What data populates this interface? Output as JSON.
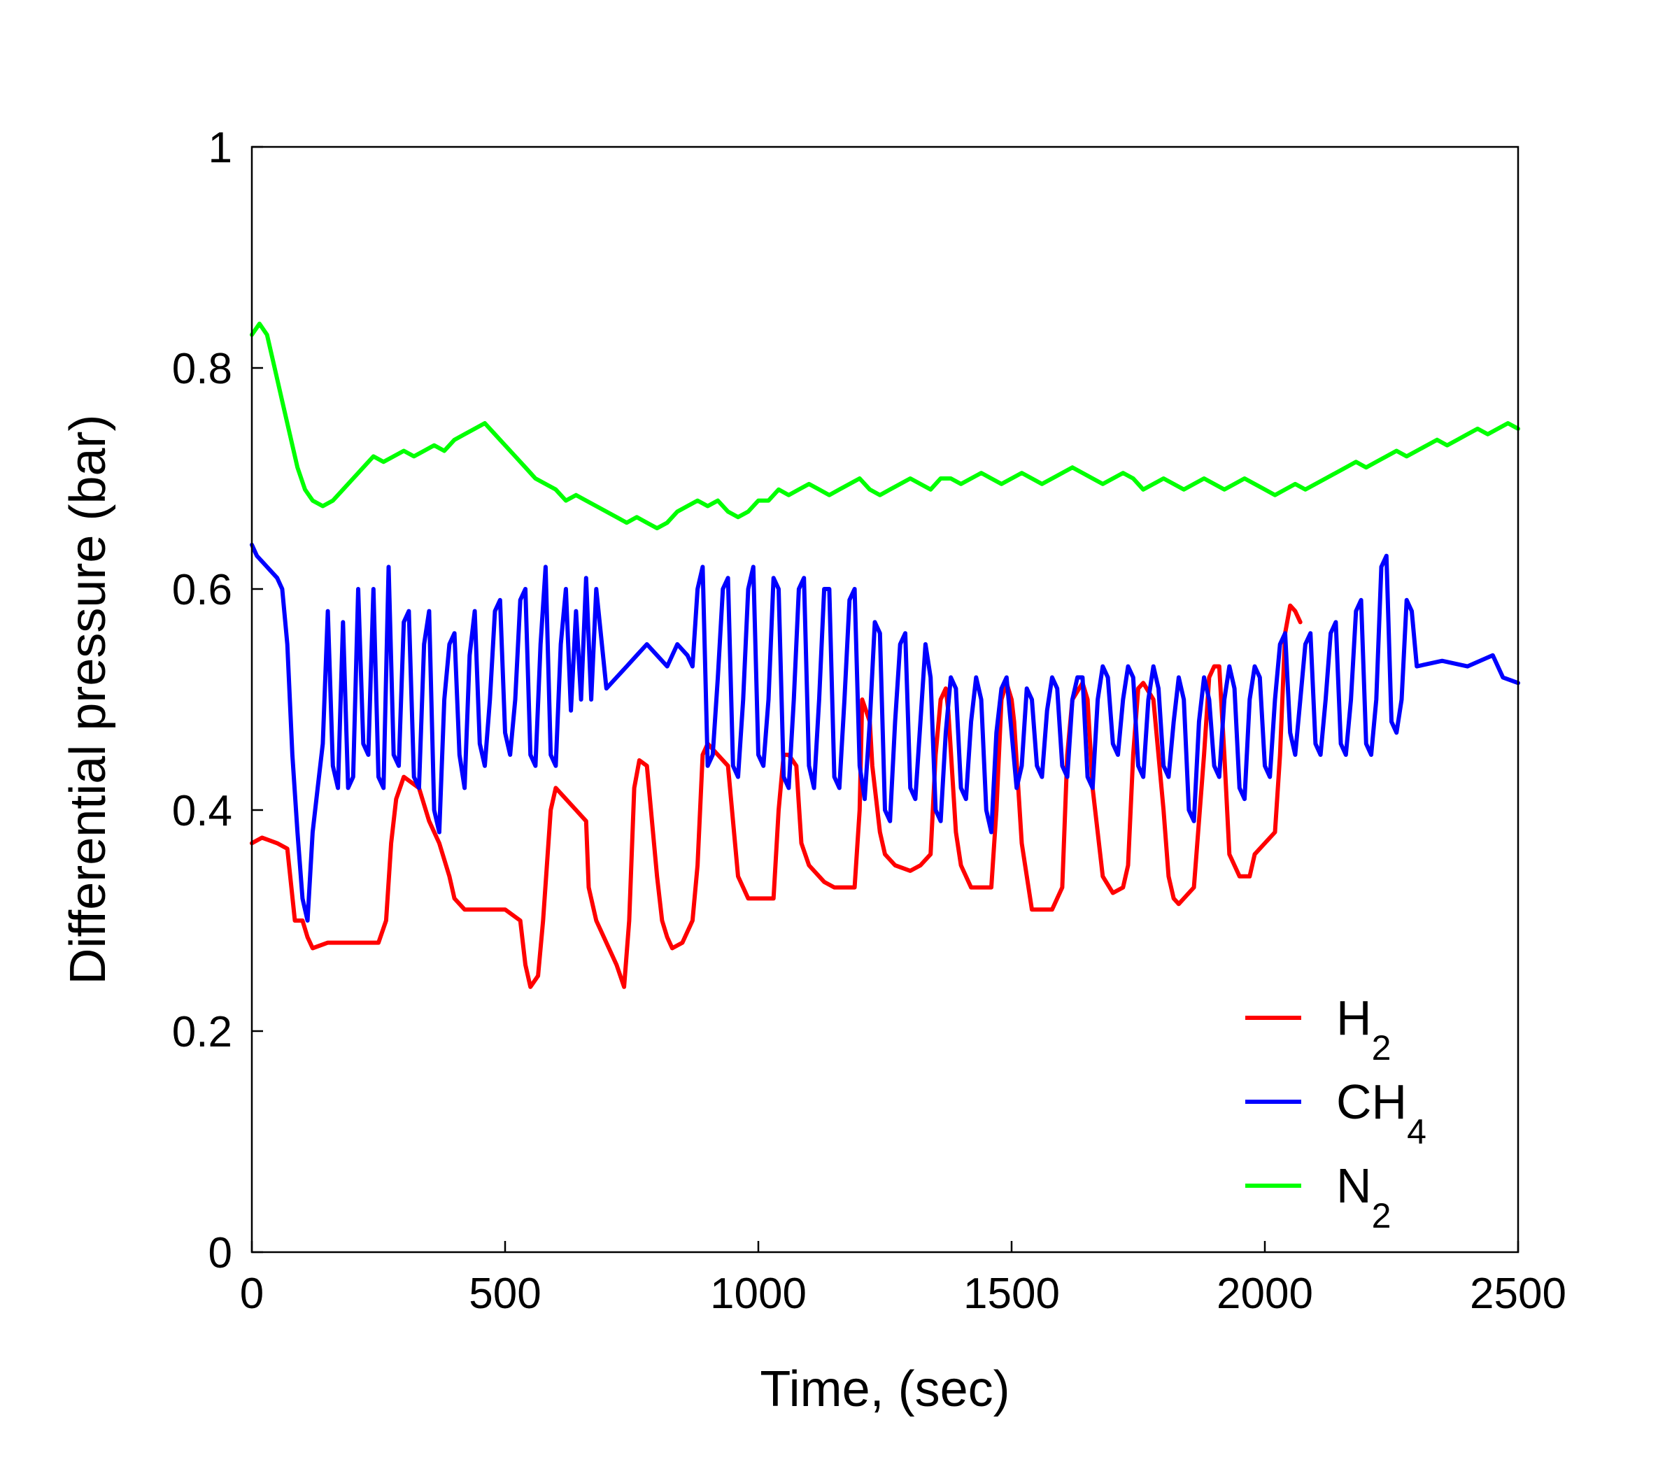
{
  "chart_data": {
    "type": "line",
    "title": "",
    "xlabel": "Time, (sec)",
    "ylabel": "Differential pressure (bar)",
    "xlim": [
      0,
      2500
    ],
    "ylim": [
      0,
      1
    ],
    "xticks": [
      0,
      500,
      1000,
      1500,
      2000,
      2500
    ],
    "xtick_labels": [
      "0",
      "500",
      "1000",
      "1500",
      "2000",
      "2500"
    ],
    "yticks": [
      0,
      0.2,
      0.4,
      0.6,
      0.8,
      1
    ],
    "ytick_labels": [
      "0",
      "0.2",
      "0.4",
      "0.6",
      "0.8",
      "1"
    ],
    "grid": false,
    "legend_position": "bottom-right",
    "series": [
      {
        "name": "H2",
        "label_main": "H",
        "label_sub": "2",
        "color": "#ff0000",
        "x": [
          0,
          20,
          50,
          70,
          85,
          100,
          110,
          120,
          150,
          200,
          250,
          265,
          275,
          285,
          300,
          330,
          350,
          370,
          390,
          400,
          420,
          450,
          500,
          530,
          540,
          550,
          565,
          575,
          590,
          600,
          620,
          640,
          660,
          665,
          680,
          700,
          720,
          735,
          745,
          755,
          765,
          780,
          800,
          810,
          820,
          830,
          850,
          870,
          880,
          890,
          900,
          920,
          940,
          960,
          970,
          980,
          1000,
          1030,
          1040,
          1050,
          1060,
          1075,
          1085,
          1100,
          1130,
          1150,
          1190,
          1200,
          1205,
          1220,
          1225,
          1240,
          1250,
          1270,
          1300,
          1320,
          1340,
          1350,
          1360,
          1370,
          1375,
          1390,
          1400,
          1420,
          1450,
          1460,
          1470,
          1480,
          1490,
          1500,
          1505,
          1520,
          1540,
          1580,
          1600,
          1610,
          1620,
          1640,
          1650,
          1660,
          1680,
          1700,
          1720,
          1730,
          1740,
          1750,
          1760,
          1780,
          1800,
          1810,
          1820,
          1830,
          1840,
          1860,
          1880,
          1890,
          1900,
          1910,
          1920,
          1930,
          1950,
          1960,
          1970,
          1980,
          2000,
          2020,
          2030,
          2040,
          2050,
          2060,
          2070
        ],
        "y": [
          0.37,
          0.375,
          0.37,
          0.365,
          0.3,
          0.3,
          0.285,
          0.275,
          0.28,
          0.28,
          0.28,
          0.3,
          0.37,
          0.41,
          0.43,
          0.42,
          0.39,
          0.37,
          0.34,
          0.32,
          0.31,
          0.31,
          0.31,
          0.3,
          0.26,
          0.24,
          0.25,
          0.3,
          0.4,
          0.42,
          0.41,
          0.4,
          0.39,
          0.33,
          0.3,
          0.28,
          0.26,
          0.24,
          0.3,
          0.42,
          0.445,
          0.44,
          0.34,
          0.3,
          0.285,
          0.275,
          0.28,
          0.3,
          0.35,
          0.45,
          0.46,
          0.45,
          0.44,
          0.34,
          0.33,
          0.32,
          0.32,
          0.32,
          0.4,
          0.45,
          0.45,
          0.44,
          0.37,
          0.35,
          0.335,
          0.33,
          0.33,
          0.4,
          0.5,
          0.48,
          0.44,
          0.38,
          0.36,
          0.35,
          0.345,
          0.35,
          0.36,
          0.45,
          0.5,
          0.51,
          0.49,
          0.38,
          0.35,
          0.33,
          0.33,
          0.33,
          0.4,
          0.5,
          0.515,
          0.5,
          0.48,
          0.37,
          0.31,
          0.31,
          0.33,
          0.45,
          0.5,
          0.515,
          0.5,
          0.42,
          0.34,
          0.325,
          0.33,
          0.35,
          0.45,
          0.51,
          0.515,
          0.5,
          0.4,
          0.34,
          0.32,
          0.315,
          0.32,
          0.33,
          0.45,
          0.52,
          0.53,
          0.53,
          0.45,
          0.36,
          0.34,
          0.34,
          0.34,
          0.36,
          0.37,
          0.38,
          0.45,
          0.56,
          0.585,
          0.58,
          0.57
        ]
      },
      {
        "name": "CH4",
        "label_main": "CH",
        "label_sub": "4",
        "color": "#0000ff",
        "x": [
          0,
          10,
          30,
          50,
          60,
          70,
          80,
          90,
          100,
          110,
          120,
          130,
          140,
          150,
          160,
          170,
          180,
          190,
          200,
          210,
          220,
          230,
          240,
          250,
          260,
          270,
          280,
          290,
          300,
          310,
          320,
          330,
          340,
          350,
          360,
          370,
          380,
          390,
          400,
          410,
          420,
          430,
          440,
          450,
          460,
          470,
          480,
          490,
          500,
          510,
          520,
          530,
          540,
          550,
          560,
          570,
          580,
          590,
          600,
          610,
          620,
          630,
          640,
          650,
          660,
          670,
          680,
          700,
          720,
          740,
          760,
          780,
          800,
          820,
          840,
          860,
          870,
          880,
          890,
          900,
          910,
          920,
          930,
          940,
          950,
          960,
          970,
          980,
          990,
          1000,
          1010,
          1020,
          1030,
          1040,
          1050,
          1060,
          1070,
          1080,
          1090,
          1100,
          1110,
          1120,
          1130,
          1140,
          1150,
          1160,
          1170,
          1180,
          1190,
          1200,
          1210,
          1220,
          1230,
          1240,
          1250,
          1260,
          1270,
          1280,
          1290,
          1300,
          1310,
          1320,
          1330,
          1340,
          1350,
          1360,
          1370,
          1380,
          1390,
          1400,
          1410,
          1420,
          1430,
          1440,
          1450,
          1460,
          1470,
          1480,
          1490,
          1500,
          1510,
          1520,
          1530,
          1540,
          1550,
          1560,
          1570,
          1580,
          1590,
          1600,
          1610,
          1620,
          1630,
          1640,
          1650,
          1660,
          1670,
          1680,
          1690,
          1700,
          1710,
          1720,
          1730,
          1740,
          1750,
          1760,
          1770,
          1780,
          1790,
          1800,
          1810,
          1820,
          1830,
          1840,
          1850,
          1860,
          1870,
          1880,
          1890,
          1900,
          1910,
          1920,
          1930,
          1940,
          1950,
          1960,
          1970,
          1980,
          1990,
          2000,
          2010,
          2020,
          2030,
          2040,
          2050,
          2060,
          2070,
          2080,
          2090,
          2100,
          2110,
          2120,
          2130,
          2140,
          2150,
          2160,
          2170,
          2180,
          2190,
          2200,
          2210,
          2220,
          2230,
          2240,
          2250,
          2260,
          2270,
          2280,
          2290,
          2300,
          2350,
          2400,
          2450,
          2470,
          2500
        ],
        "y": [
          0.64,
          0.63,
          0.62,
          0.61,
          0.6,
          0.55,
          0.45,
          0.38,
          0.32,
          0.3,
          0.38,
          0.42,
          0.46,
          0.58,
          0.44,
          0.42,
          0.57,
          0.42,
          0.43,
          0.6,
          0.46,
          0.45,
          0.6,
          0.43,
          0.42,
          0.62,
          0.45,
          0.44,
          0.57,
          0.58,
          0.43,
          0.42,
          0.55,
          0.58,
          0.4,
          0.38,
          0.5,
          0.55,
          0.56,
          0.45,
          0.42,
          0.54,
          0.58,
          0.46,
          0.44,
          0.5,
          0.58,
          0.59,
          0.47,
          0.45,
          0.5,
          0.59,
          0.6,
          0.45,
          0.44,
          0.55,
          0.62,
          0.45,
          0.44,
          0.55,
          0.6,
          0.49,
          0.58,
          0.5,
          0.61,
          0.5,
          0.6,
          0.51,
          0.52,
          0.53,
          0.54,
          0.55,
          0.54,
          0.53,
          0.55,
          0.54,
          0.53,
          0.6,
          0.62,
          0.44,
          0.45,
          0.52,
          0.6,
          0.61,
          0.44,
          0.43,
          0.5,
          0.6,
          0.62,
          0.45,
          0.44,
          0.5,
          0.61,
          0.6,
          0.43,
          0.42,
          0.5,
          0.6,
          0.61,
          0.44,
          0.42,
          0.5,
          0.6,
          0.6,
          0.43,
          0.42,
          0.5,
          0.59,
          0.6,
          0.44,
          0.41,
          0.48,
          0.57,
          0.56,
          0.4,
          0.39,
          0.48,
          0.55,
          0.56,
          0.42,
          0.41,
          0.48,
          0.55,
          0.52,
          0.4,
          0.39,
          0.47,
          0.52,
          0.51,
          0.42,
          0.41,
          0.48,
          0.52,
          0.5,
          0.4,
          0.38,
          0.47,
          0.51,
          0.52,
          0.47,
          0.42,
          0.44,
          0.51,
          0.5,
          0.44,
          0.43,
          0.49,
          0.52,
          0.51,
          0.44,
          0.43,
          0.5,
          0.52,
          0.52,
          0.43,
          0.42,
          0.5,
          0.53,
          0.52,
          0.46,
          0.45,
          0.5,
          0.53,
          0.52,
          0.44,
          0.43,
          0.5,
          0.53,
          0.51,
          0.44,
          0.43,
          0.48,
          0.52,
          0.5,
          0.4,
          0.39,
          0.48,
          0.52,
          0.5,
          0.44,
          0.43,
          0.5,
          0.53,
          0.51,
          0.42,
          0.41,
          0.5,
          0.53,
          0.52,
          0.44,
          0.43,
          0.5,
          0.55,
          0.56,
          0.47,
          0.45,
          0.5,
          0.55,
          0.56,
          0.46,
          0.45,
          0.5,
          0.56,
          0.57,
          0.46,
          0.45,
          0.5,
          0.58,
          0.59,
          0.46,
          0.45,
          0.5,
          0.62,
          0.63,
          0.48,
          0.47,
          0.5,
          0.59,
          0.58,
          0.53,
          0.535,
          0.53,
          0.54,
          0.52,
          0.515
        ]
      },
      {
        "name": "N2",
        "label_main": "N",
        "label_sub": "2",
        "color": "#00ff00",
        "x": [
          0,
          15,
          30,
          45,
          60,
          75,
          90,
          105,
          120,
          140,
          160,
          180,
          200,
          220,
          240,
          260,
          280,
          300,
          320,
          340,
          360,
          380,
          400,
          420,
          440,
          460,
          480,
          500,
          520,
          540,
          560,
          580,
          600,
          620,
          640,
          660,
          680,
          700,
          720,
          740,
          760,
          780,
          800,
          820,
          840,
          860,
          880,
          900,
          920,
          940,
          960,
          980,
          1000,
          1020,
          1040,
          1060,
          1080,
          1100,
          1120,
          1140,
          1160,
          1180,
          1200,
          1220,
          1240,
          1260,
          1280,
          1300,
          1320,
          1340,
          1360,
          1380,
          1400,
          1420,
          1440,
          1460,
          1480,
          1500,
          1520,
          1540,
          1560,
          1580,
          1600,
          1620,
          1640,
          1660,
          1680,
          1700,
          1720,
          1740,
          1760,
          1780,
          1800,
          1820,
          1840,
          1860,
          1880,
          1900,
          1920,
          1940,
          1960,
          1980,
          2000,
          2020,
          2040,
          2060,
          2080,
          2100,
          2120,
          2140,
          2160,
          2180,
          2200,
          2220,
          2240,
          2260,
          2280,
          2300,
          2320,
          2340,
          2360,
          2380,
          2400,
          2420,
          2440,
          2460,
          2480,
          2500
        ],
        "y": [
          0.83,
          0.84,
          0.83,
          0.8,
          0.77,
          0.74,
          0.71,
          0.69,
          0.68,
          0.675,
          0.68,
          0.69,
          0.7,
          0.71,
          0.72,
          0.715,
          0.72,
          0.725,
          0.72,
          0.725,
          0.73,
          0.725,
          0.735,
          0.74,
          0.745,
          0.75,
          0.74,
          0.73,
          0.72,
          0.71,
          0.7,
          0.695,
          0.69,
          0.68,
          0.685,
          0.68,
          0.675,
          0.67,
          0.665,
          0.66,
          0.665,
          0.66,
          0.655,
          0.66,
          0.67,
          0.675,
          0.68,
          0.675,
          0.68,
          0.67,
          0.665,
          0.67,
          0.68,
          0.68,
          0.69,
          0.685,
          0.69,
          0.695,
          0.69,
          0.685,
          0.69,
          0.695,
          0.7,
          0.69,
          0.685,
          0.69,
          0.695,
          0.7,
          0.695,
          0.69,
          0.7,
          0.7,
          0.695,
          0.7,
          0.705,
          0.7,
          0.695,
          0.7,
          0.705,
          0.7,
          0.695,
          0.7,
          0.705,
          0.71,
          0.705,
          0.7,
          0.695,
          0.7,
          0.705,
          0.7,
          0.69,
          0.695,
          0.7,
          0.695,
          0.69,
          0.695,
          0.7,
          0.695,
          0.69,
          0.695,
          0.7,
          0.695,
          0.69,
          0.685,
          0.69,
          0.695,
          0.69,
          0.695,
          0.7,
          0.705,
          0.71,
          0.715,
          0.71,
          0.715,
          0.72,
          0.725,
          0.72,
          0.725,
          0.73,
          0.735,
          0.73,
          0.735,
          0.74,
          0.745,
          0.74,
          0.745,
          0.75,
          0.745
        ]
      }
    ]
  }
}
